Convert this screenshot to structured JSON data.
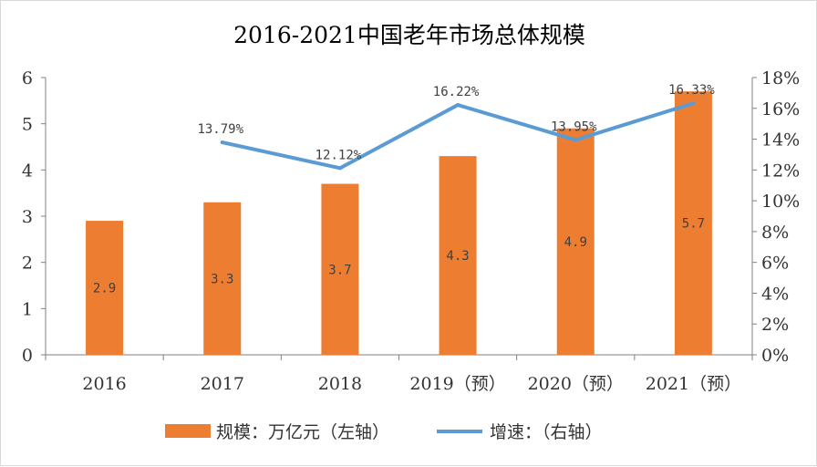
{
  "chart_data": {
    "type": "bar",
    "title": "2016-2021中国老年市场总体规模",
    "categories": [
      "2016",
      "2017",
      "2018",
      "2019（预）",
      "2020（预）",
      "2021（预）"
    ],
    "series": [
      {
        "name": "规模：万亿元（左轴）",
        "type": "bar",
        "axis": "left",
        "color": "#ED7D31",
        "values": [
          2.9,
          3.3,
          3.7,
          4.3,
          4.9,
          5.7
        ],
        "labels": [
          "2.9",
          "3.3",
          "3.7",
          "4.3",
          "4.9",
          "5.7"
        ]
      },
      {
        "name": "增速：（右轴）",
        "type": "line",
        "axis": "right",
        "color": "#5B9BD5",
        "values": [
          null,
          13.79,
          12.12,
          16.22,
          13.95,
          16.33
        ],
        "labels": [
          "",
          "13.79%",
          "12.12%",
          "16.22%",
          "13.95%",
          "16.33%"
        ]
      }
    ],
    "y_left": {
      "range": [
        0,
        6
      ],
      "ticks": [
        "0",
        "1",
        "2",
        "3",
        "4",
        "5",
        "6"
      ]
    },
    "y_right": {
      "range": [
        0,
        18
      ],
      "ticks": [
        "0%",
        "2%",
        "4%",
        "6%",
        "8%",
        "10%",
        "12%",
        "14%",
        "16%",
        "18%"
      ]
    },
    "grid": false,
    "legend_position": "bottom"
  }
}
